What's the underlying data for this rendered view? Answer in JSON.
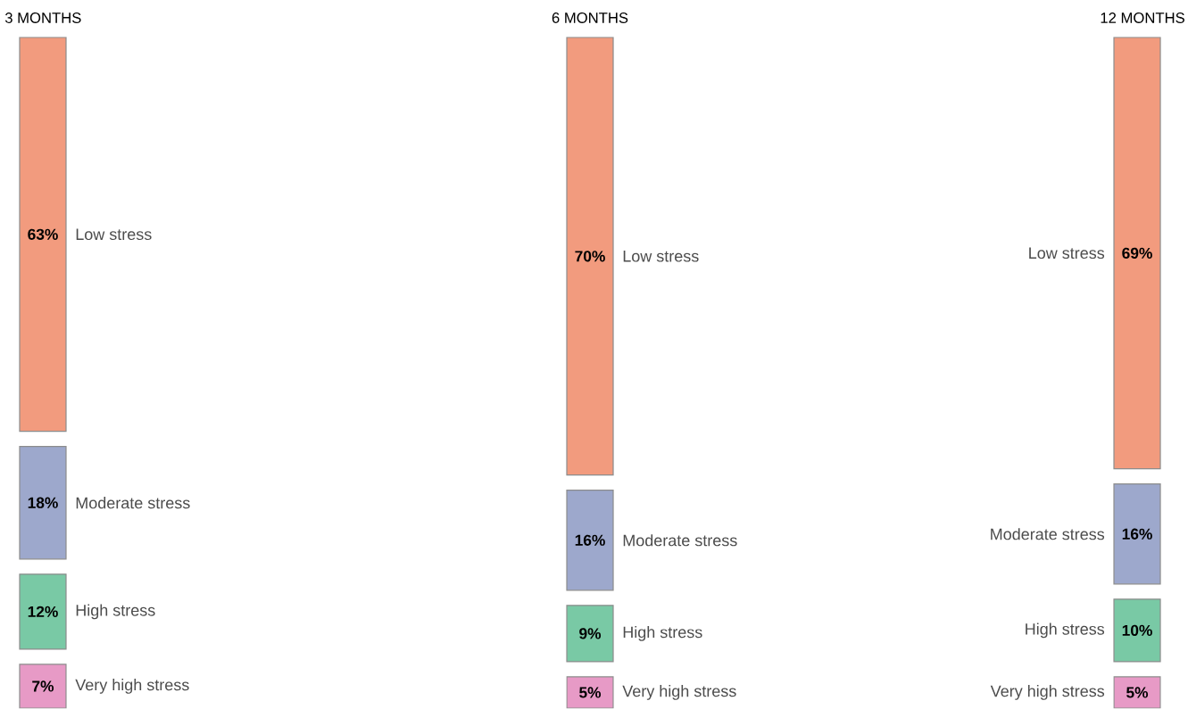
{
  "chart_data": {
    "type": "other",
    "categories": [
      "Low stress",
      "Moderate stress",
      "High stress",
      "Very high stress"
    ],
    "series": [
      {
        "name": "3 MONTHS",
        "values": [
          63,
          18,
          12,
          7
        ],
        "value_labels": [
          "63%",
          "18%",
          "12%",
          "7%"
        ],
        "colors": [
          "#f29b7e",
          "#9da8cc",
          "#79c9a5",
          "#e79ac6"
        ]
      },
      {
        "name": "6 MONTHS",
        "values": [
          70,
          16,
          9,
          5
        ],
        "value_labels": [
          "70%",
          "16%",
          "9%",
          "5%"
        ],
        "colors": [
          "#f29b7e",
          "#9da8cc",
          "#79c9a5",
          "#e79ac6"
        ]
      },
      {
        "name": "12 MONTHS",
        "values": [
          69,
          16,
          10,
          5
        ],
        "value_labels": [
          "69%",
          "16%",
          "10%",
          "5%"
        ],
        "colors": [
          "#f29b7e",
          "#9da8cc",
          "#79c9a5",
          "#e79ac6"
        ]
      }
    ]
  }
}
